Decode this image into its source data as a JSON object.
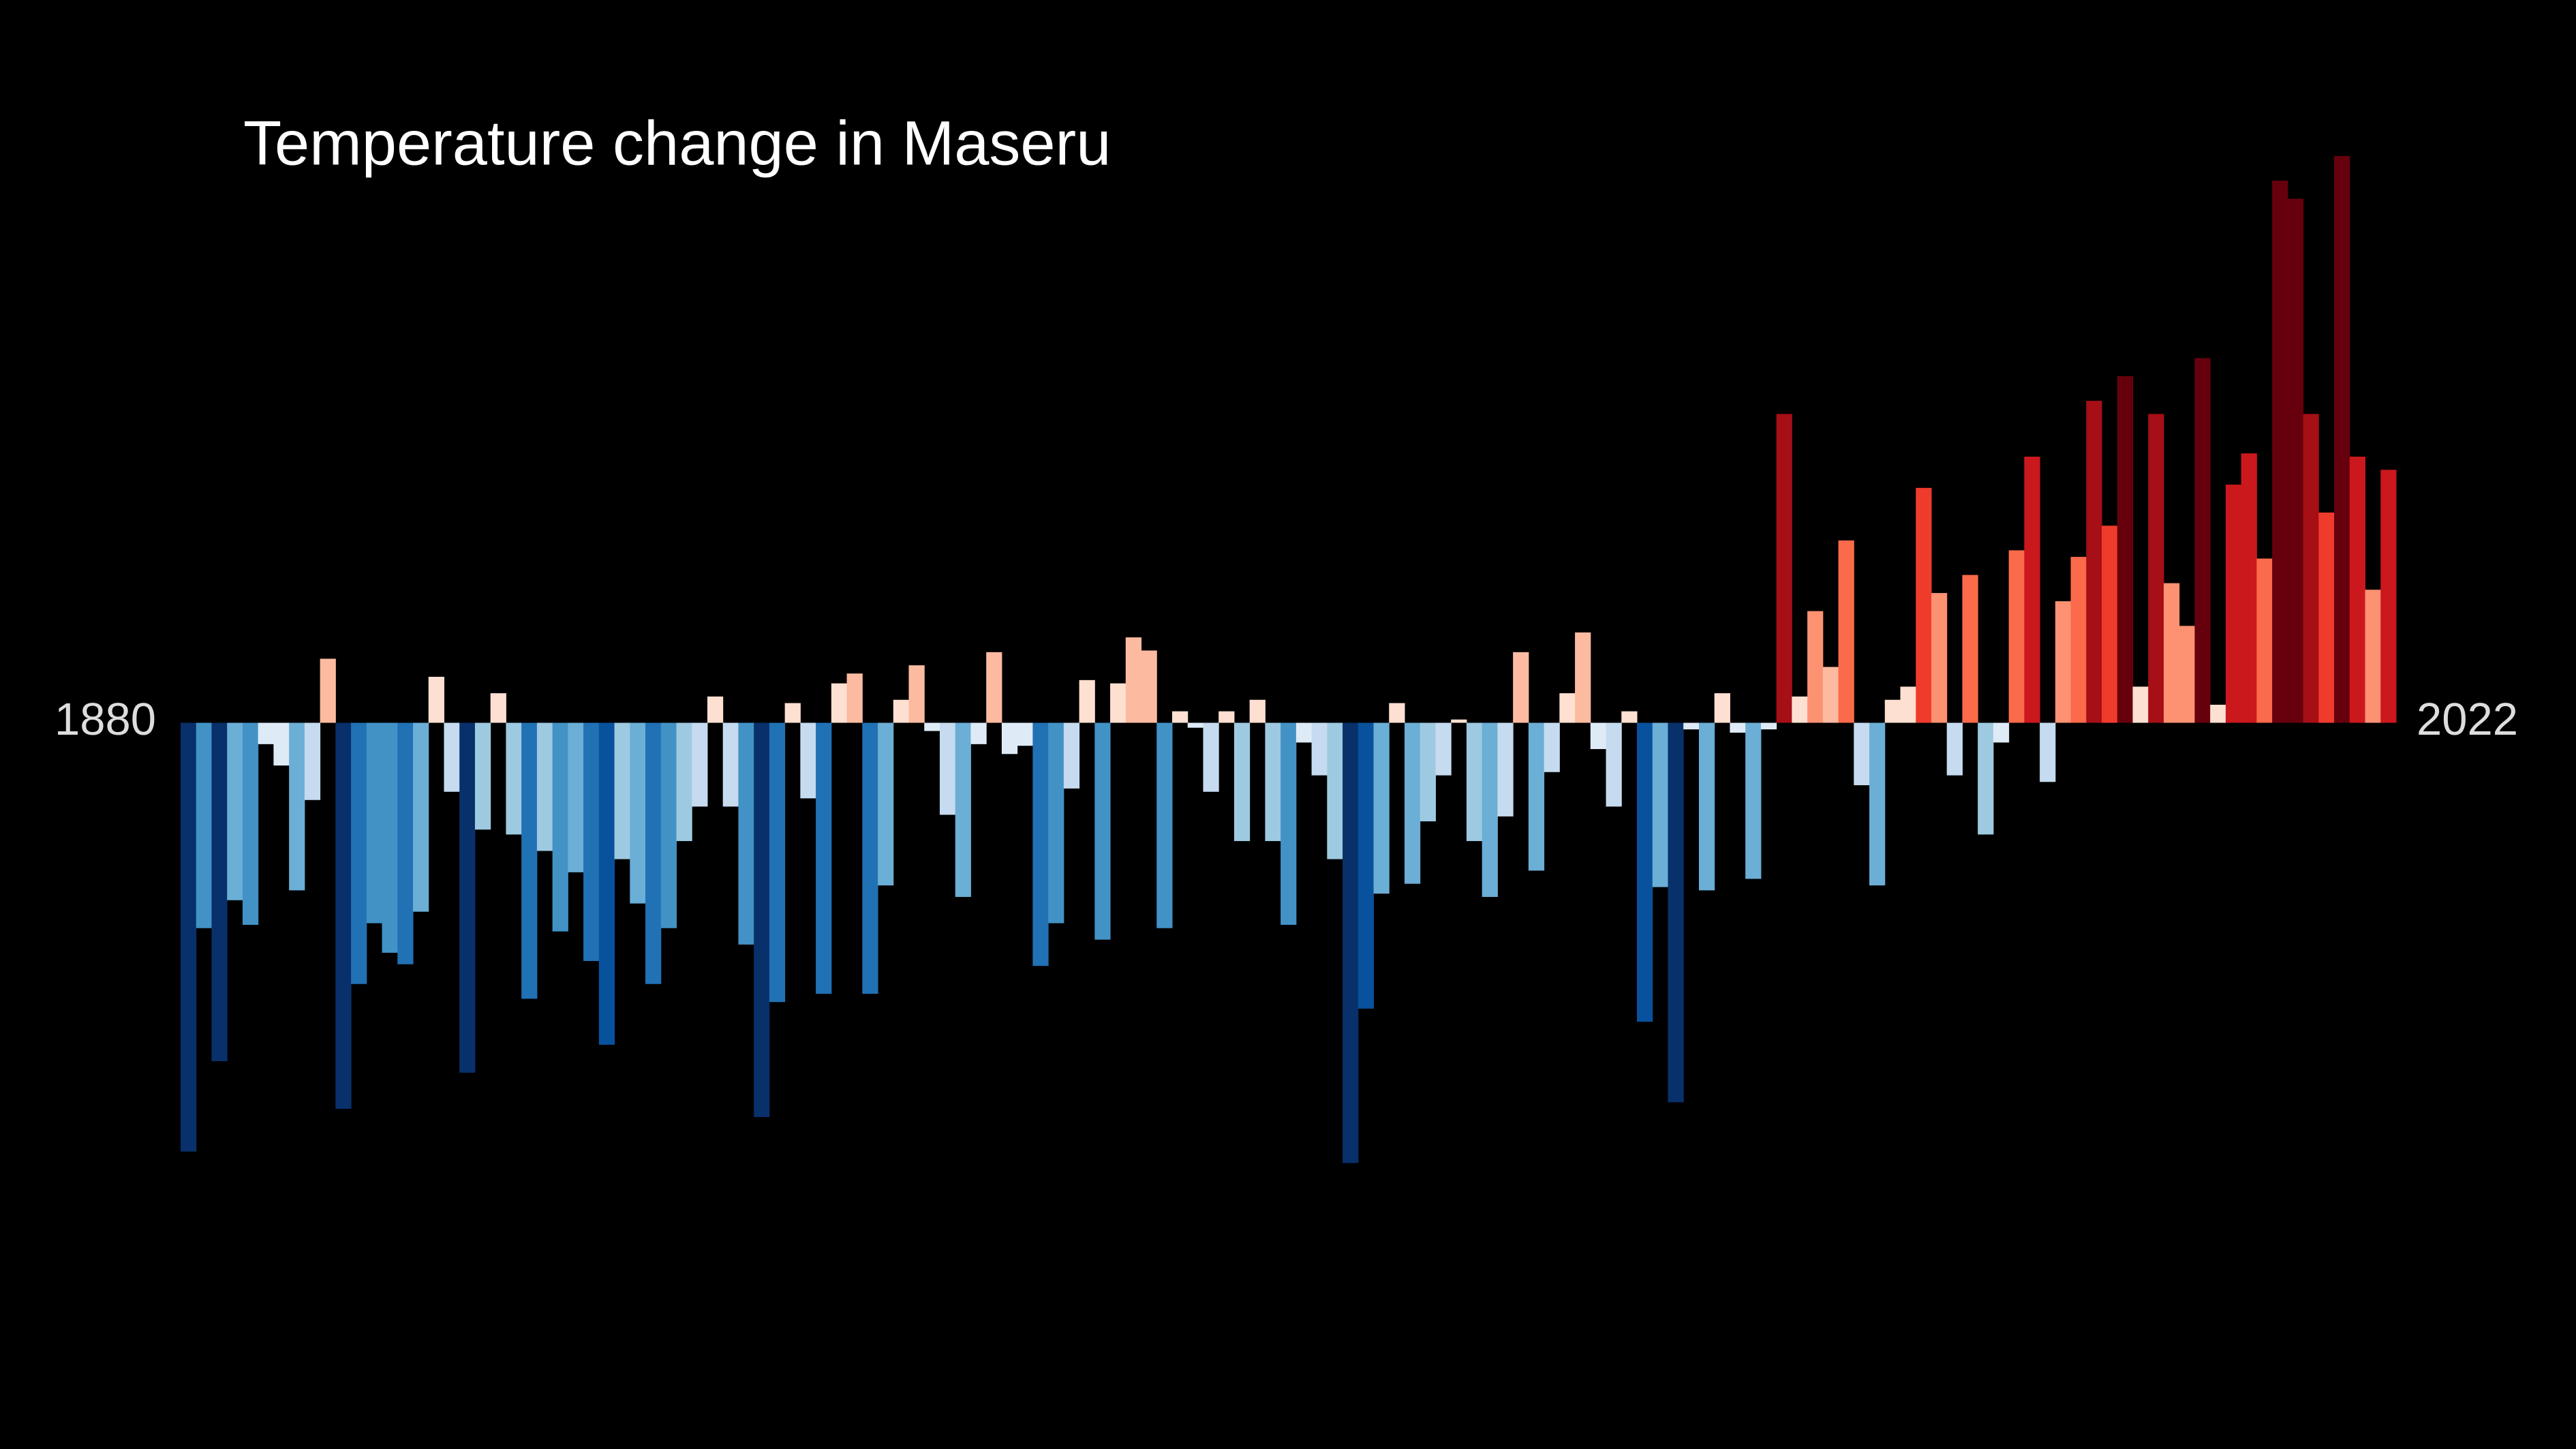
{
  "chart_data": {
    "type": "bar",
    "title": "Temperature change in Maseru",
    "categories": [
      "1880",
      null,
      null,
      null,
      null,
      null,
      null,
      null,
      null,
      null,
      null,
      null,
      null,
      null,
      null,
      null,
      null,
      null,
      null,
      null,
      null,
      null,
      null,
      null,
      null,
      null,
      null,
      null,
      null,
      null,
      null,
      null,
      null,
      null,
      null,
      null,
      null,
      null,
      null,
      null,
      null,
      null,
      null,
      null,
      null,
      null,
      null,
      null,
      null,
      null,
      null,
      null,
      null,
      null,
      null,
      null,
      null,
      null,
      null,
      null,
      null,
      null,
      null,
      null,
      null,
      null,
      null,
      null,
      null,
      null,
      null,
      null,
      null,
      null,
      null,
      null,
      null,
      null,
      null,
      null,
      null,
      null,
      null,
      null,
      null,
      null,
      null,
      null,
      null,
      null,
      null,
      null,
      null,
      null,
      null,
      null,
      null,
      null,
      null,
      null,
      null,
      null,
      null,
      null,
      null,
      null,
      null,
      null,
      null,
      null,
      null,
      null,
      null,
      null,
      null,
      null,
      null,
      null,
      null,
      null,
      null,
      null,
      null,
      null,
      null,
      null,
      null,
      null,
      null,
      null,
      null,
      null,
      null,
      null,
      null,
      null,
      null,
      null,
      null,
      null,
      null,
      null,
      "2022"
    ],
    "values": [
      -2.61,
      -1.25,
      -2.06,
      -1.08,
      -1.23,
      -0.13,
      -0.26,
      -1.02,
      -0.47,
      0.39,
      -2.35,
      -1.59,
      -1.22,
      -1.4,
      -1.47,
      -1.15,
      0.28,
      -0.42,
      -2.13,
      -0.65,
      0.18,
      -0.68,
      -1.68,
      -0.78,
      -1.27,
      -0.91,
      -1.45,
      -1.96,
      -0.83,
      -1.1,
      -1.59,
      -1.25,
      -0.72,
      -0.51,
      0.16,
      -0.51,
      -1.35,
      -2.4,
      -1.7,
      0.12,
      -0.46,
      -1.65,
      0.24,
      0.3,
      -1.65,
      -0.99,
      0.14,
      0.35,
      -0.05,
      -0.56,
      -1.06,
      -0.13,
      0.43,
      -0.19,
      -0.14,
      -1.48,
      -1.22,
      -0.4,
      0.26,
      -1.32,
      0.24,
      0.52,
      0.44,
      -1.25,
      0.07,
      -0.03,
      -0.42,
      0.07,
      -0.72,
      0.14,
      -0.72,
      -1.23,
      -0.12,
      -0.32,
      -0.83,
      -2.68,
      -1.74,
      -1.04,
      0.12,
      -0.98,
      -0.6,
      -0.32,
      0.02,
      -0.72,
      -1.06,
      -0.57,
      0.43,
      -0.9,
      -0.3,
      0.18,
      0.55,
      -0.16,
      -0.51,
      0.07,
      -1.82,
      -1.0,
      -2.31,
      -0.04,
      -1.02,
      0.18,
      -0.06,
      -0.95,
      -0.04,
      1.88,
      0.16,
      0.68,
      0.34,
      1.11,
      -0.38,
      -0.99,
      0.14,
      0.22,
      1.43,
      0.79,
      -0.32,
      0.9,
      -0.68,
      -0.12,
      1.05,
      1.62,
      -0.36,
      0.74,
      1.01,
      1.96,
      1.2,
      2.11,
      0.22,
      1.88,
      0.85,
      0.59,
      2.22,
      0.11,
      1.45,
      1.64,
      1.0,
      3.3,
      3.19,
      1.88,
      1.28,
      3.45,
      1.62,
      0.81,
      1.54
    ],
    "ylim": [
      -4.4,
      4.4
    ],
    "colormap": [
      "#08306b",
      "#08519c",
      "#2171b5",
      "#4292c6",
      "#6baed6",
      "#9ecae1",
      "#c6dbef",
      "#deebf7",
      "#fee0d2",
      "#fcbba1",
      "#fc9272",
      "#fb6a4a",
      "#ef3b2c",
      "#cb181d",
      "#a50f15",
      "#67000d"
    ],
    "color_limits": [
      -2.3,
      2.3
    ]
  }
}
